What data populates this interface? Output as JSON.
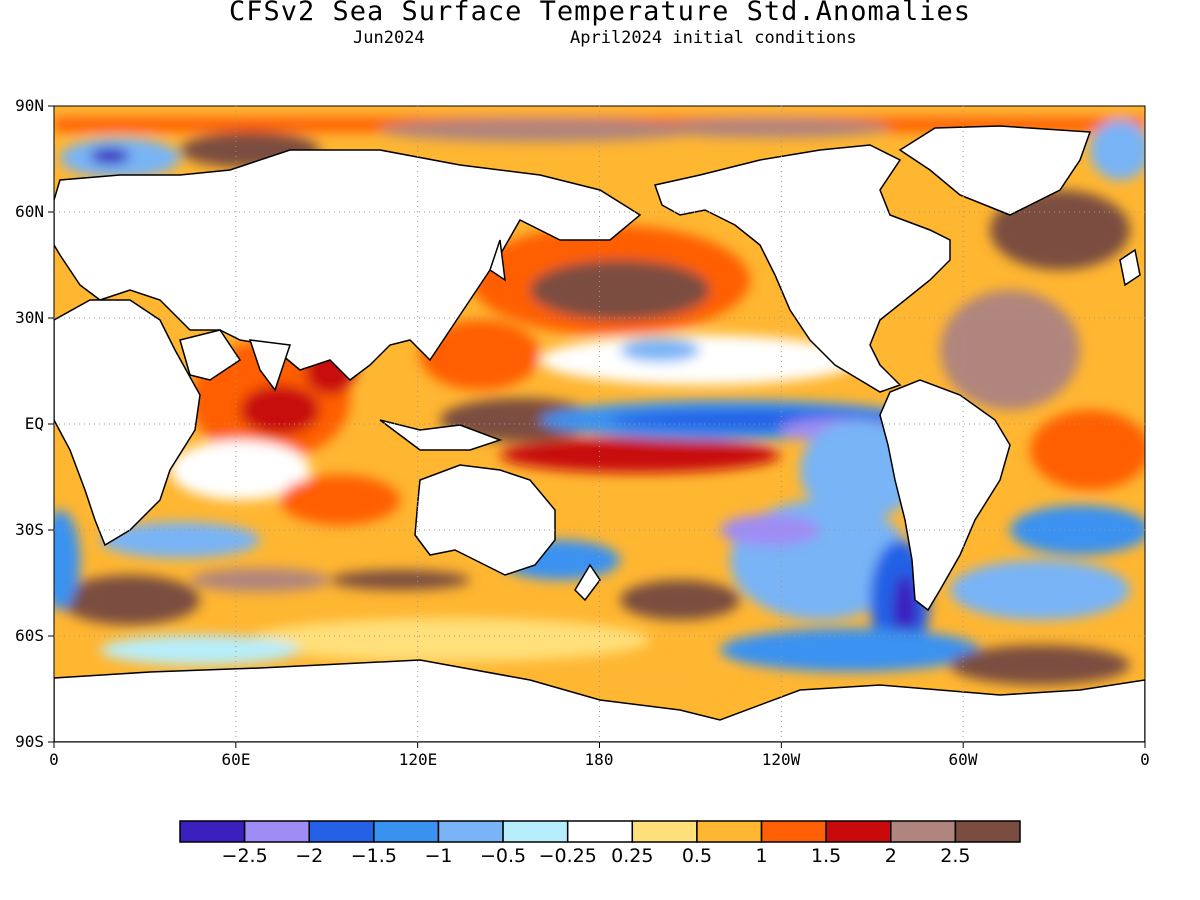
{
  "title": "CFSv2 Sea Surface Temperature Std.Anomalies",
  "subtitle_left": "Jun2024",
  "subtitle_right": "April2024 initial conditions",
  "axes": {
    "y_ticks": [
      "90N",
      "60N",
      "30N",
      "EQ",
      "30S",
      "60S",
      "90S"
    ],
    "x_ticks": [
      "0",
      "60E",
      "120E",
      "180",
      "120W",
      "60W",
      "0"
    ],
    "grid": "dotted"
  },
  "legend": {
    "colors": [
      "#3b1fbf",
      "#9f8cf5",
      "#2461e6",
      "#3a92f0",
      "#78b4f6",
      "#b7eefb",
      "#ffffff",
      "#ffe07a",
      "#ffb631",
      "#ff5f05",
      "#c80a0a",
      "#b0857d",
      "#7a4d40"
    ],
    "labels": [
      "−2.5",
      "−2",
      "−1.5",
      "−1",
      "−0.5",
      "−0.25",
      "0.25",
      "0.5",
      "1",
      "1.5",
      "2",
      "2.5"
    ]
  },
  "colors": {
    "land": "#ffffff",
    "coast": "#000000",
    "strong_cold": "#3b1fbf",
    "cold": "#2461e6",
    "warm": "#ffb631",
    "very_warm": "#7a4d40"
  }
}
